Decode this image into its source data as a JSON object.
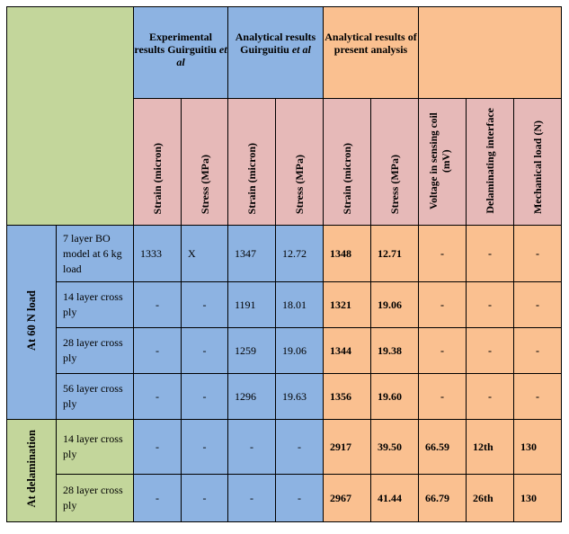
{
  "header": {
    "group_experimental": "Experimental results Guirguitiu",
    "group_experimental_suffix": "et al",
    "group_analytical": "Analytical results Guirguitiu",
    "group_analytical_suffix": "et al",
    "group_present": "Analytical results of present analysis",
    "col_strain_micron": "Strain (micron)",
    "col_stress_mpa": "Stress (MPa)",
    "col_voltage": "Voltage in sensing coil (mV)",
    "col_delam_interface": "Delaminating interface",
    "col_mech_load": "Mechanical load (N)"
  },
  "sections": {
    "at_60n": "At 60 N load",
    "at_delam": "At delamination"
  },
  "rows": [
    {
      "label": "7 layer BO model at 6 kg load",
      "exp_strain": "1333",
      "exp_stress": "X",
      "ana_strain": "1347",
      "ana_stress": "12.72",
      "pre_strain": "1348",
      "pre_stress": "12.71",
      "voltage": "-",
      "interface": "-",
      "load": "-"
    },
    {
      "label": "14 layer cross ply",
      "exp_strain": "-",
      "exp_stress": "-",
      "ana_strain": "1191",
      "ana_stress": "18.01",
      "pre_strain": "1321",
      "pre_stress": "19.06",
      "voltage": "-",
      "interface": "-",
      "load": "-"
    },
    {
      "label": "28 layer cross ply",
      "exp_strain": "-",
      "exp_stress": "-",
      "ana_strain": "1259",
      "ana_stress": "19.06",
      "pre_strain": "1344",
      "pre_stress": "19.38",
      "voltage": "-",
      "interface": "-",
      "load": "-"
    },
    {
      "label": "56 layer cross ply",
      "exp_strain": "-",
      "exp_stress": "-",
      "ana_strain": "1296",
      "ana_stress": "19.63",
      "pre_strain": "1356",
      "pre_stress": "19.60",
      "voltage": "-",
      "interface": "-",
      "load": "-"
    },
    {
      "label": "14 layer cross ply",
      "exp_strain": "-",
      "exp_stress": "-",
      "ana_strain": "-",
      "ana_stress": "-",
      "pre_strain": "2917",
      "pre_stress": "39.50",
      "voltage": "66.59",
      "interface": "12th",
      "load": "130"
    },
    {
      "label": "28 layer cross ply",
      "exp_strain": "-",
      "exp_stress": "-",
      "ana_strain": "-",
      "ana_stress": "-",
      "pre_strain": "2967",
      "pre_stress": "41.44",
      "voltage": "66.79",
      "interface": "26th",
      "load": "130"
    }
  ]
}
